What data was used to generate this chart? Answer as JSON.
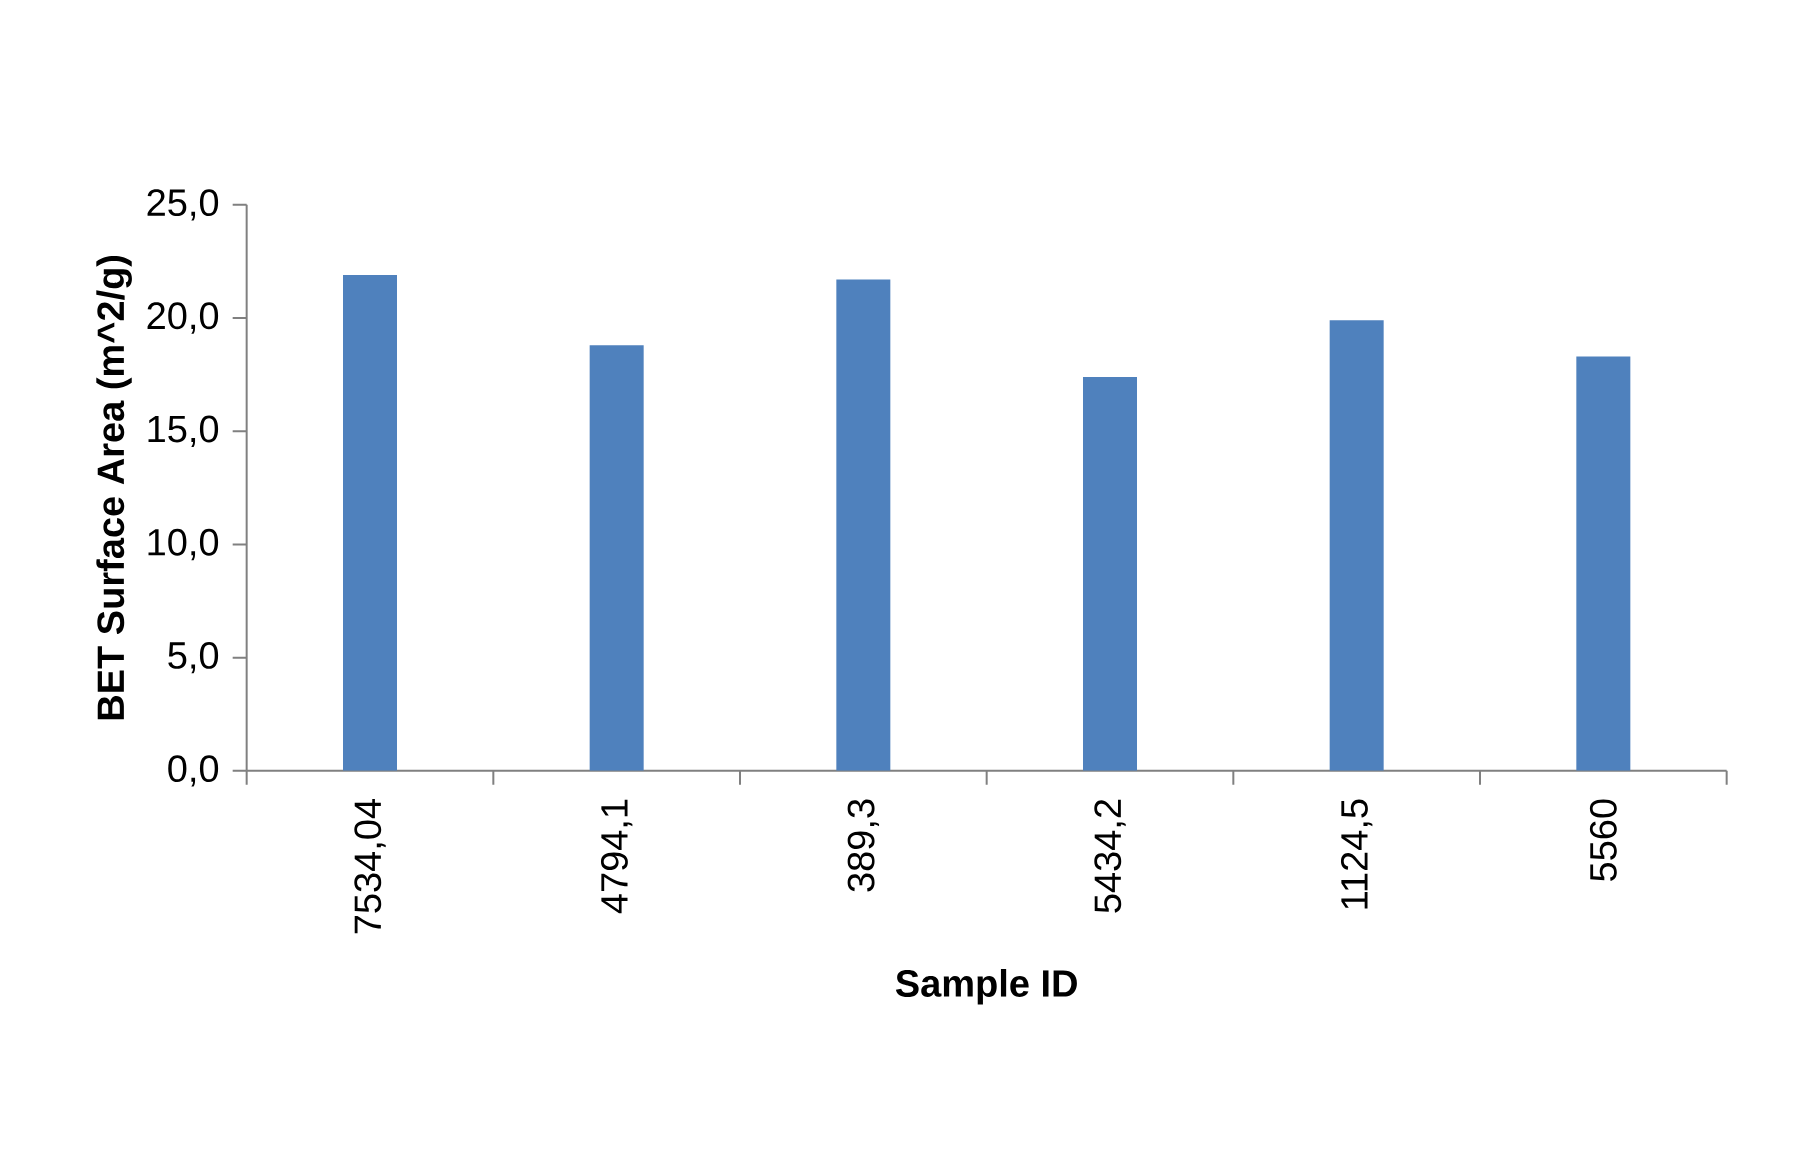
{
  "chart_data": {
    "type": "bar",
    "xlabel": "Sample ID",
    "ylabel": "BET Surface Area (m^2/g)",
    "categories": [
      "7534,04",
      "4794,1",
      "389,3",
      "5434,2",
      "1124,5",
      "5560"
    ],
    "values": [
      21.9,
      18.8,
      21.7,
      17.4,
      19.9,
      18.3
    ],
    "color": "#4f81bd",
    "ylim": [
      0,
      25
    ],
    "yticks": [
      {
        "value": 0,
        "label": "0,0"
      },
      {
        "value": 5,
        "label": "5,0"
      },
      {
        "value": 10,
        "label": "10,0"
      },
      {
        "value": 15,
        "label": "15,0"
      },
      {
        "value": 20,
        "label": "20,0"
      },
      {
        "value": 25,
        "label": "25,0"
      }
    ],
    "grid": false,
    "legend": false
  }
}
